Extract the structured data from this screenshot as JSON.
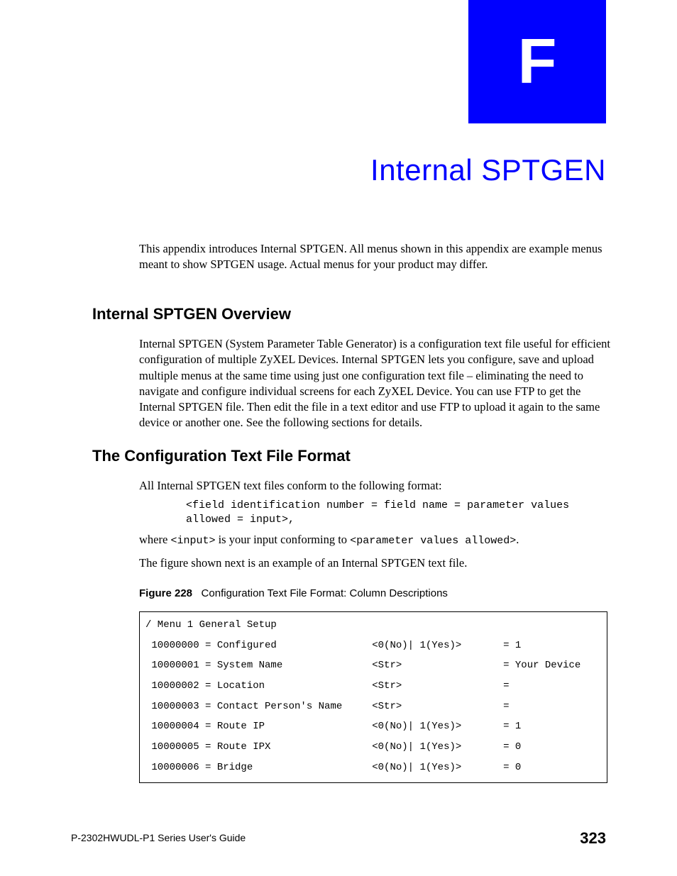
{
  "appendix_letter": "F",
  "chapter_title": "Internal SPTGEN",
  "intro": "This appendix introduces Internal SPTGEN. All menus shown in this appendix are example menus meant to show SPTGEN usage. Actual menus for your product may differ.",
  "section1": {
    "heading": "Internal SPTGEN Overview",
    "body": "Internal SPTGEN (System Parameter Table Generator) is a configuration text file useful for efficient configuration of multiple ZyXEL Devices. Internal SPTGEN lets you configure, save and upload multiple menus at the same time using just one configuration text file – eliminating the need to navigate and configure individual screens for each ZyXEL Device. You can use FTP to get the Internal SPTGEN file. Then edit the file in a text editor and use FTP to upload it again to the same device or another one. See the following sections for details."
  },
  "section2": {
    "heading": "The Configuration Text File Format",
    "lead": "All Internal SPTGEN text files conform to the following format:",
    "format_line": "<field identification number = field name = parameter values allowed = input>,",
    "where_prefix": "where ",
    "where_code1": "<input>",
    "where_mid": " is your input conforming to ",
    "where_code2": "<parameter values allowed>",
    "where_suffix": ".",
    "example_note": "The figure shown next is an example of an Internal SPTGEN text file."
  },
  "figure": {
    "label": "Figure 228",
    "caption": "Configuration Text File Format: Column Descriptions",
    "menu_header": "/ Menu 1 General Setup",
    "rows": [
      {
        "id": "10000000",
        "name": "Configured",
        "allowed": "<0(No)| 1(Yes)>",
        "value": "= 1"
      },
      {
        "id": "10000001",
        "name": "System Name",
        "allowed": "<Str>",
        "value": "= Your Device"
      },
      {
        "id": "10000002",
        "name": "Location",
        "allowed": "<Str>",
        "value": "="
      },
      {
        "id": "10000003",
        "name": "Contact Person's Name",
        "allowed": "<Str>",
        "value": "="
      },
      {
        "id": "10000004",
        "name": "Route IP",
        "allowed": "<0(No)| 1(Yes)>",
        "value": "= 1"
      },
      {
        "id": "10000005",
        "name": "Route IPX",
        "allowed": "<0(No)| 1(Yes)>",
        "value": "= 0"
      },
      {
        "id": "10000006",
        "name": "Bridge",
        "allowed": "<0(No)| 1(Yes)>",
        "value": "= 0"
      }
    ],
    "col_widths": {
      "id": 9,
      "name": 26,
      "allowed": 22
    }
  },
  "footer": {
    "guide": "P-2302HWUDL-P1 Series User's Guide",
    "page": "323"
  }
}
